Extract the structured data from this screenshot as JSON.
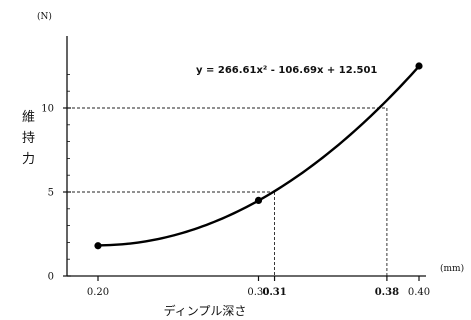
{
  "chart_data": {
    "type": "line",
    "x_unit": "(mm)",
    "y_unit": "(N)",
    "ylabel": [
      "維",
      "持",
      "力"
    ],
    "xlabel": "ディンプル深さ",
    "equation": "y = 266.61x² - 106.69x + 12.501",
    "xlim": [
      0.2,
      0.4
    ],
    "ylim": [
      0,
      12.5
    ],
    "x_ticks": [
      {
        "value": 0.2,
        "label": "0.20",
        "bold": false
      },
      {
        "value": 0.3,
        "label": "0.30",
        "bold": false
      },
      {
        "value": 0.31,
        "label": "0.31",
        "bold": true
      },
      {
        "value": 0.38,
        "label": "0.38",
        "bold": true
      },
      {
        "value": 0.4,
        "label": "0.40",
        "bold": false
      }
    ],
    "y_ticks": [
      {
        "value": 0,
        "label": "0"
      },
      {
        "value": 5,
        "label": "5"
      },
      {
        "value": 10,
        "label": "10"
      }
    ],
    "curve": {
      "a": 266.61,
      "b": -106.69,
      "c": 12.501
    },
    "points": [
      {
        "x": 0.2,
        "y": 1.8
      },
      {
        "x": 0.3,
        "y": 4.5
      },
      {
        "x": 0.4,
        "y": 12.5
      }
    ],
    "guides": [
      {
        "x": 0.31,
        "y": 5
      },
      {
        "x": 0.38,
        "y": 10
      }
    ],
    "grid": false,
    "legend": "none"
  }
}
